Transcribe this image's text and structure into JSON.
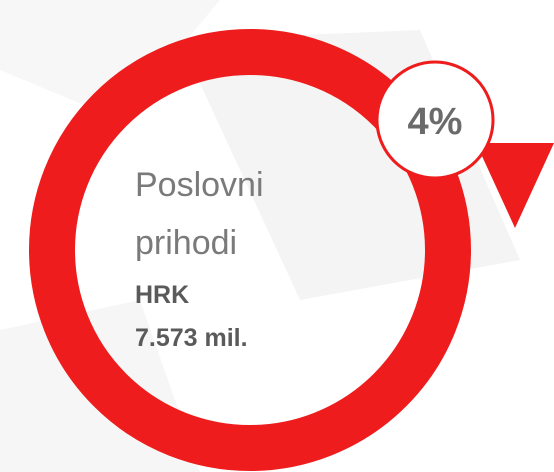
{
  "badge": "4%",
  "label": {
    "line1": "Poslovni",
    "line2": "prihodi"
  },
  "currency": "HRK",
  "amount": "7.573 mil."
}
